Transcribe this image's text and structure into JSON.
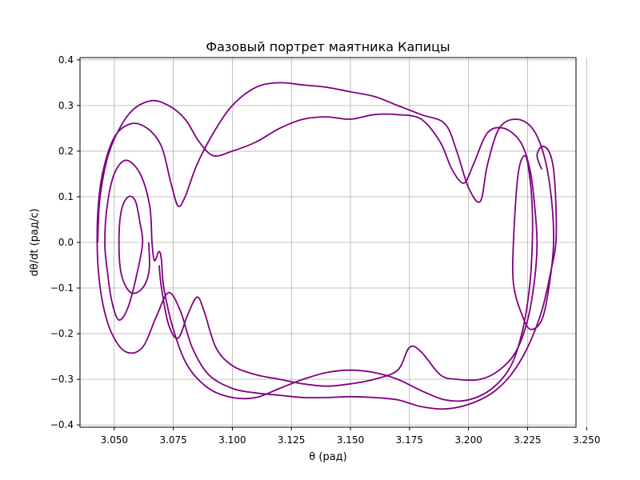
{
  "chart_data": {
    "type": "line",
    "title": "Фазовый портрет маятника Капицы",
    "xlabel": "θ (рад)",
    "ylabel": "dθ/dt (рад/с)",
    "xlim": [
      3.0355,
      3.2455
    ],
    "ylim": [
      -0.405,
      0.405
    ],
    "xticks": [
      3.05,
      3.075,
      3.1,
      3.125,
      3.15,
      3.175,
      3.2,
      3.225,
      3.25
    ],
    "xtick_labels": [
      "3.050",
      "3.075",
      "3.100",
      "3.125",
      "3.150",
      "3.175",
      "3.200",
      "3.225",
      "3.250"
    ],
    "yticks": [
      -0.4,
      -0.3,
      -0.2,
      -0.1,
      0.0,
      0.1,
      0.2,
      0.3,
      0.4
    ],
    "ytick_labels": [
      "−0.4",
      "−0.3",
      "−0.2",
      "−0.1",
      "0.0",
      "0.1",
      "0.2",
      "0.3",
      "0.4"
    ],
    "grid": true,
    "line_color": "#800080",
    "series": [
      {
        "values_note_free": true,
        "points": [
          [
            3.0646,
            0.0
          ],
          [
            3.0648,
            -0.06
          ],
          [
            3.062,
            -0.1
          ],
          [
            3.057,
            -0.11
          ],
          [
            3.053,
            -0.07
          ],
          [
            3.052,
            0.0
          ],
          [
            3.053,
            0.07
          ],
          [
            3.056,
            0.1
          ],
          [
            3.059,
            0.09
          ],
          [
            3.061,
            0.04
          ],
          [
            3.062,
            0.0
          ],
          [
            3.06,
            -0.06
          ],
          [
            3.056,
            -0.14
          ],
          [
            3.052,
            -0.17
          ],
          [
            3.049,
            -0.13
          ],
          [
            3.047,
            -0.06
          ],
          [
            3.046,
            0.0
          ],
          [
            3.047,
            0.08
          ],
          [
            3.05,
            0.15
          ],
          [
            3.055,
            0.18
          ],
          [
            3.061,
            0.15
          ],
          [
            3.065,
            0.08
          ],
          [
            3.066,
            0.0
          ],
          [
            3.067,
            -0.04
          ],
          [
            3.069,
            -0.02
          ],
          [
            3.07,
            -0.04
          ],
          [
            3.071,
            -0.1
          ],
          [
            3.075,
            -0.19
          ],
          [
            3.081,
            -0.27
          ],
          [
            3.09,
            -0.32
          ],
          [
            3.1,
            -0.34
          ],
          [
            3.11,
            -0.34
          ],
          [
            3.12,
            -0.32
          ],
          [
            3.13,
            -0.3
          ],
          [
            3.14,
            -0.285
          ],
          [
            3.15,
            -0.28
          ],
          [
            3.16,
            -0.285
          ],
          [
            3.17,
            -0.3
          ],
          [
            3.18,
            -0.325
          ],
          [
            3.19,
            -0.345
          ],
          [
            3.2,
            -0.345
          ],
          [
            3.21,
            -0.32
          ],
          [
            3.218,
            -0.27
          ],
          [
            3.223,
            -0.19
          ],
          [
            3.226,
            -0.09
          ],
          [
            3.227,
            0.0
          ],
          [
            3.227,
            0.07
          ],
          [
            3.226,
            0.14
          ],
          [
            3.224,
            0.19
          ],
          [
            3.221,
            0.15
          ],
          [
            3.219,
            0.0
          ],
          [
            3.219,
            -0.09
          ],
          [
            3.222,
            -0.15
          ],
          [
            3.226,
            -0.19
          ],
          [
            3.231,
            -0.17
          ],
          [
            3.234,
            -0.1
          ],
          [
            3.236,
            0.0
          ],
          [
            3.235,
            0.1
          ],
          [
            3.232,
            0.19
          ],
          [
            3.227,
            0.25
          ],
          [
            3.22,
            0.27
          ],
          [
            3.213,
            0.25
          ],
          [
            3.208,
            0.17
          ],
          [
            3.205,
            0.09
          ],
          [
            3.2,
            0.12
          ],
          [
            3.195,
            0.2
          ],
          [
            3.19,
            0.26
          ],
          [
            3.18,
            0.28
          ],
          [
            3.17,
            0.3
          ],
          [
            3.16,
            0.32
          ],
          [
            3.15,
            0.33
          ],
          [
            3.14,
            0.34
          ],
          [
            3.13,
            0.345
          ],
          [
            3.12,
            0.35
          ],
          [
            3.11,
            0.34
          ],
          [
            3.1,
            0.3
          ],
          [
            3.092,
            0.24
          ],
          [
            3.085,
            0.17
          ],
          [
            3.08,
            0.1
          ],
          [
            3.077,
            0.08
          ],
          [
            3.074,
            0.13
          ],
          [
            3.07,
            0.21
          ],
          [
            3.064,
            0.25
          ],
          [
            3.057,
            0.26
          ],
          [
            3.05,
            0.23
          ],
          [
            3.045,
            0.15
          ],
          [
            3.043,
            0.06
          ],
          [
            3.043,
            -0.04
          ],
          [
            3.045,
            -0.13
          ],
          [
            3.049,
            -0.2
          ],
          [
            3.055,
            -0.24
          ],
          [
            3.062,
            -0.23
          ],
          [
            3.068,
            -0.16
          ],
          [
            3.073,
            -0.11
          ],
          [
            3.078,
            -0.15
          ],
          [
            3.083,
            -0.23
          ],
          [
            3.09,
            -0.29
          ],
          [
            3.1,
            -0.32
          ],
          [
            3.11,
            -0.33
          ],
          [
            3.12,
            -0.335
          ],
          [
            3.13,
            -0.34
          ],
          [
            3.14,
            -0.34
          ],
          [
            3.15,
            -0.338
          ],
          [
            3.16,
            -0.34
          ],
          [
            3.17,
            -0.345
          ],
          [
            3.18,
            -0.36
          ],
          [
            3.19,
            -0.365
          ],
          [
            3.2,
            -0.355
          ],
          [
            3.21,
            -0.33
          ],
          [
            3.218,
            -0.29
          ],
          [
            3.225,
            -0.23
          ],
          [
            3.231,
            -0.15
          ],
          [
            3.235,
            -0.06
          ],
          [
            3.237,
            0.0
          ],
          [
            3.237,
            0.08
          ],
          [
            3.236,
            0.16
          ],
          [
            3.234,
            0.2
          ],
          [
            3.231,
            0.21
          ],
          [
            3.229,
            0.19
          ],
          [
            3.231,
            0.16
          ]
        ]
      },
      {
        "points": [
          [
            3.069,
            -0.05
          ],
          [
            3.07,
            -0.1
          ],
          [
            3.073,
            -0.18
          ],
          [
            3.077,
            -0.21
          ],
          [
            3.081,
            -0.16
          ],
          [
            3.085,
            -0.12
          ],
          [
            3.088,
            -0.15
          ],
          [
            3.093,
            -0.23
          ],
          [
            3.1,
            -0.27
          ],
          [
            3.11,
            -0.29
          ],
          [
            3.12,
            -0.3
          ],
          [
            3.13,
            -0.31
          ],
          [
            3.14,
            -0.315
          ],
          [
            3.15,
            -0.31
          ],
          [
            3.16,
            -0.3
          ],
          [
            3.17,
            -0.28
          ],
          [
            3.175,
            -0.23
          ],
          [
            3.18,
            -0.24
          ],
          [
            3.188,
            -0.29
          ],
          [
            3.195,
            -0.3
          ],
          [
            3.205,
            -0.3
          ],
          [
            3.213,
            -0.28
          ],
          [
            3.22,
            -0.24
          ],
          [
            3.225,
            -0.17
          ],
          [
            3.228,
            -0.08
          ],
          [
            3.229,
            0.0
          ],
          [
            3.228,
            0.08
          ],
          [
            3.226,
            0.16
          ],
          [
            3.222,
            0.22
          ],
          [
            3.215,
            0.25
          ],
          [
            3.208,
            0.24
          ],
          [
            3.202,
            0.17
          ],
          [
            3.198,
            0.13
          ],
          [
            3.193,
            0.16
          ],
          [
            3.188,
            0.22
          ],
          [
            3.18,
            0.27
          ],
          [
            3.17,
            0.28
          ],
          [
            3.16,
            0.28
          ],
          [
            3.15,
            0.27
          ],
          [
            3.14,
            0.275
          ],
          [
            3.13,
            0.27
          ],
          [
            3.12,
            0.25
          ],
          [
            3.11,
            0.22
          ],
          [
            3.1,
            0.2
          ],
          [
            3.092,
            0.19
          ],
          [
            3.086,
            0.22
          ],
          [
            3.08,
            0.27
          ],
          [
            3.073,
            0.3
          ],
          [
            3.065,
            0.31
          ],
          [
            3.056,
            0.28
          ],
          [
            3.048,
            0.2
          ],
          [
            3.044,
            0.1
          ],
          [
            3.043,
            0.0
          ]
        ]
      }
    ]
  }
}
